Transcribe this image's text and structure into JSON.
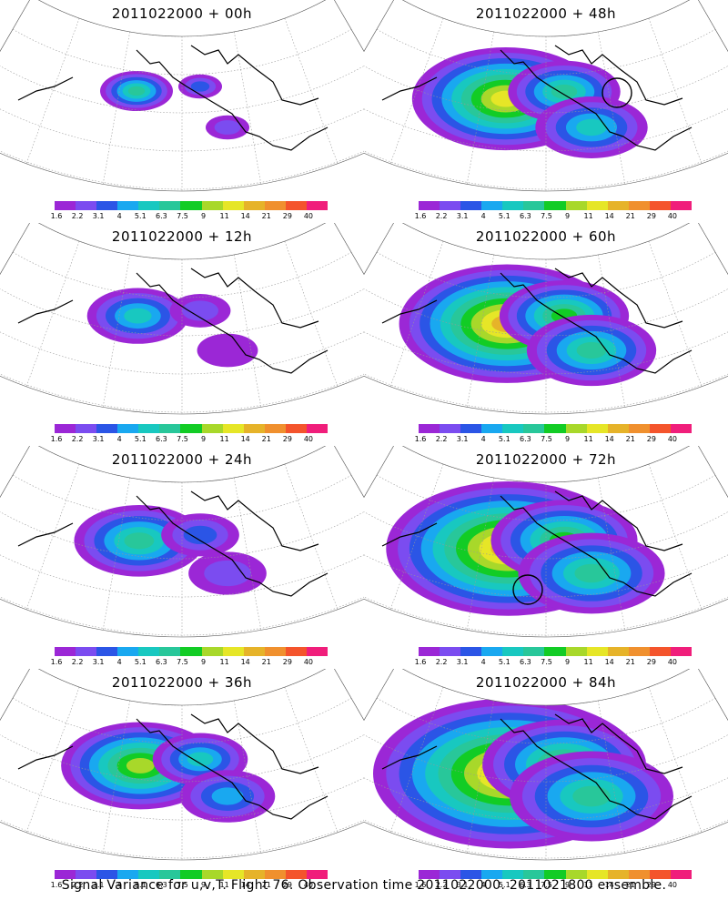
{
  "palette": {
    "colors": [
      "#9b27d6",
      "#7b4cf0",
      "#2b55e6",
      "#19a8f0",
      "#18c8c0",
      "#28c79a",
      "#12cc25",
      "#a8d82a",
      "#e6e627",
      "#e6b329",
      "#f0902e",
      "#f4542c",
      "#f01e7b"
    ],
    "labels": [
      "1.6",
      "2.2",
      "3.1",
      "4",
      "5.1",
      "6.3",
      "7.5",
      "9",
      "11",
      "14",
      "21",
      "29",
      "40"
    ]
  },
  "chart_data": [
    {
      "type": "heatmap",
      "title": "2011022000 + 00h",
      "lead_hours": 0,
      "max_level_label": "6.3",
      "circle_marker": false,
      "colorbar_labels": [
        "1.6",
        "2.2",
        "3.1",
        "4",
        "5.1",
        "6.3",
        "7.5",
        "9",
        "11",
        "14",
        "21",
        "29",
        "40"
      ]
    },
    {
      "type": "heatmap",
      "title": "2011022000 + 12h",
      "lead_hours": 12,
      "max_level_label": "5.1",
      "circle_marker": false,
      "colorbar_labels": [
        "1.6",
        "2.2",
        "3.1",
        "4",
        "5.1",
        "6.3",
        "7.5",
        "9",
        "11",
        "14",
        "21",
        "29",
        "40"
      ]
    },
    {
      "type": "heatmap",
      "title": "2011022000 + 24h",
      "lead_hours": 24,
      "max_level_label": "6.3",
      "circle_marker": false,
      "colorbar_labels": [
        "1.6",
        "2.2",
        "3.1",
        "4",
        "5.1",
        "6.3",
        "7.5",
        "9",
        "11",
        "14",
        "21",
        "29",
        "40"
      ]
    },
    {
      "type": "heatmap",
      "title": "2011022000 + 36h",
      "lead_hours": 36,
      "max_level_label": "9",
      "circle_marker": false,
      "colorbar_labels": [
        "1.6",
        "2.2",
        "3.1",
        "4",
        "5.1",
        "6.3",
        "7.5",
        "9",
        "11",
        "14",
        "21",
        "29",
        "40"
      ]
    },
    {
      "type": "heatmap",
      "title": "2011022000 + 48h",
      "lead_hours": 48,
      "max_level_label": "11",
      "circle_marker": true,
      "colorbar_labels": [
        "1.6",
        "2.2",
        "3.1",
        "4",
        "5.1",
        "6.3",
        "7.5",
        "9",
        "11",
        "14",
        "21",
        "29",
        "40"
      ]
    },
    {
      "type": "heatmap",
      "title": "2011022000 + 60h",
      "lead_hours": 60,
      "max_level_label": "14",
      "circle_marker": false,
      "colorbar_labels": [
        "1.6",
        "2.2",
        "3.1",
        "4",
        "5.1",
        "6.3",
        "7.5",
        "9",
        "11",
        "14",
        "21",
        "29",
        "40"
      ]
    },
    {
      "type": "heatmap",
      "title": "2011022000 + 72h",
      "lead_hours": 72,
      "max_level_label": "14",
      "circle_marker": true,
      "colorbar_labels": [
        "1.6",
        "2.2",
        "3.1",
        "4",
        "5.1",
        "6.3",
        "7.5",
        "9",
        "11",
        "14",
        "21",
        "29",
        "40"
      ]
    },
    {
      "type": "heatmap",
      "title": "2011022000 + 84h",
      "lead_hours": 84,
      "max_level_label": "14",
      "circle_marker": false,
      "colorbar_labels": [
        "1.6",
        "2.2",
        "3.1",
        "4",
        "5.1",
        "6.3",
        "7.5",
        "9",
        "11",
        "14",
        "21",
        "29",
        "40"
      ]
    }
  ],
  "footer": "Signal Variance for u,v,T. Flight 76. Observation time 2011022000. 2011021800 ensemble."
}
